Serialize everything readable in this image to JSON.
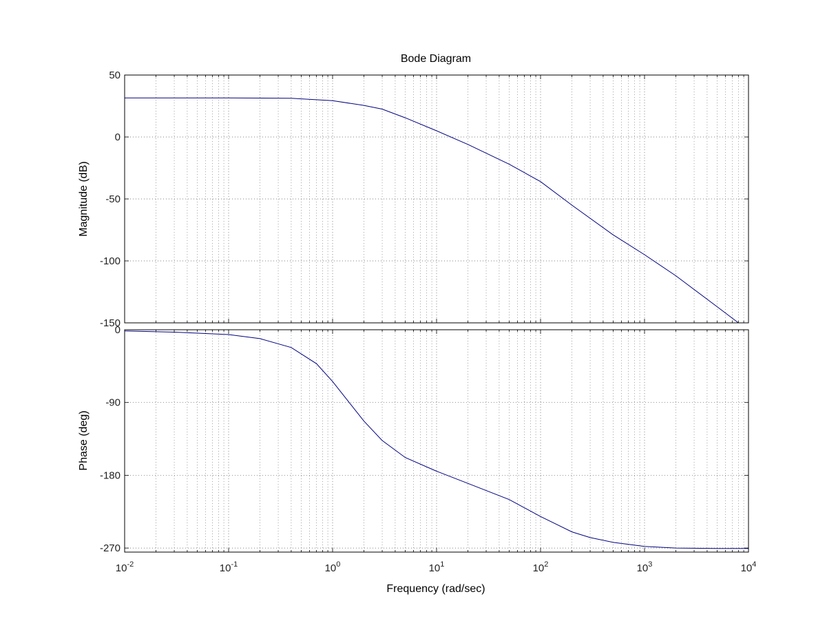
{
  "chart_data": [
    {
      "type": "line",
      "title": "Bode Diagram",
      "xlabel": "Frequency  (rad/sec)",
      "ylabel": "Magnitude (dB)",
      "x_scale": "log",
      "xlim": [
        0.01,
        10000
      ],
      "ylim": [
        -150,
        50
      ],
      "y_ticks": [
        50,
        0,
        -50,
        -100,
        -150
      ],
      "grid": true,
      "line_color": "#000080",
      "series": [
        {
          "x": [
            0.01,
            0.1,
            0.4,
            1,
            2,
            3,
            5,
            10,
            20,
            50,
            100,
            200,
            500,
            1000,
            2000,
            5000,
            8000
          ],
          "y": [
            31.5,
            31.5,
            31.3,
            29.3,
            25.5,
            22.5,
            15.5,
            5,
            -6,
            -22,
            -36,
            -55,
            -79,
            -95,
            -112,
            -137,
            -150
          ]
        }
      ]
    },
    {
      "type": "line",
      "xlabel": "Frequency  (rad/sec)",
      "ylabel": "Phase (deg)",
      "x_scale": "log",
      "xlim": [
        0.01,
        10000
      ],
      "ylim": [
        -275,
        0
      ],
      "x_ticks": [
        "10^-2",
        "10^-1",
        "10^0",
        "10^1",
        "10^2",
        "10^3",
        "10^4"
      ],
      "y_ticks": [
        0,
        -90,
        -180,
        -270
      ],
      "grid": true,
      "line_color": "#000080",
      "series": [
        {
          "x": [
            0.01,
            0.03,
            0.1,
            0.2,
            0.4,
            0.7,
            1,
            2,
            3,
            5,
            10,
            20,
            50,
            100,
            200,
            300,
            500,
            1000,
            2000,
            5000,
            10000
          ],
          "y": [
            -1.5,
            -3,
            -6,
            -11,
            -22,
            -42,
            -64,
            -113,
            -137,
            -158,
            -175,
            -190,
            -210,
            -231,
            -250,
            -257,
            -263,
            -268,
            -270,
            -270.5,
            -270.5
          ]
        }
      ]
    }
  ]
}
